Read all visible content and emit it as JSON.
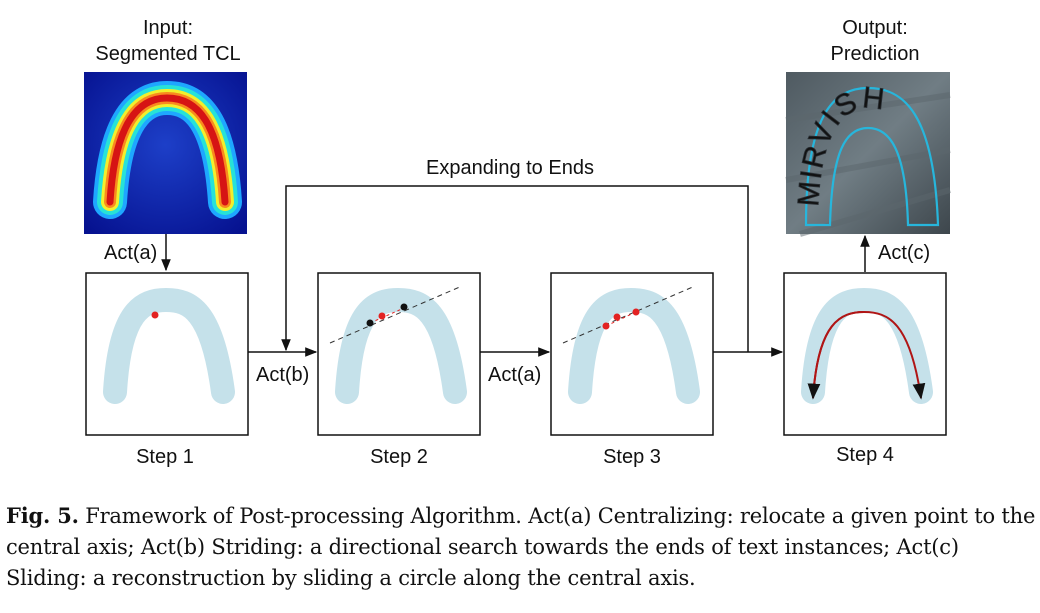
{
  "input": {
    "title_line1": "Input:",
    "title_line2": "Segmented TCL"
  },
  "output": {
    "title_line1": "Output:",
    "title_line2": "Prediction",
    "engraved_word": "MIRVISH"
  },
  "loop_label": "Expanding to Ends",
  "actions": {
    "a_top": "Act(a)",
    "b": "Act(b)",
    "a_mid": "Act(a)",
    "c": "Act(c)"
  },
  "steps": [
    "Step 1",
    "Step 2",
    "Step 3",
    "Step 4"
  ],
  "caption": {
    "fig_number": "Fig. 5.",
    "text": "Framework of Post-processing Algorithm. Act(a) Centralizing: relocate a given point to the central axis; Act(b) Striding: a directional search towards the ends of text instances; Act(c) Sliding: a reconstruction by sliding a circle along the central axis."
  },
  "colors": {
    "tcl_region": "#c5e1ea",
    "point_red": "#e32222",
    "point_black": "#111111",
    "axis_curve": "#b01515",
    "heatmap_background": "#0b1e9e",
    "prediction_outline": "#27b6dc"
  }
}
